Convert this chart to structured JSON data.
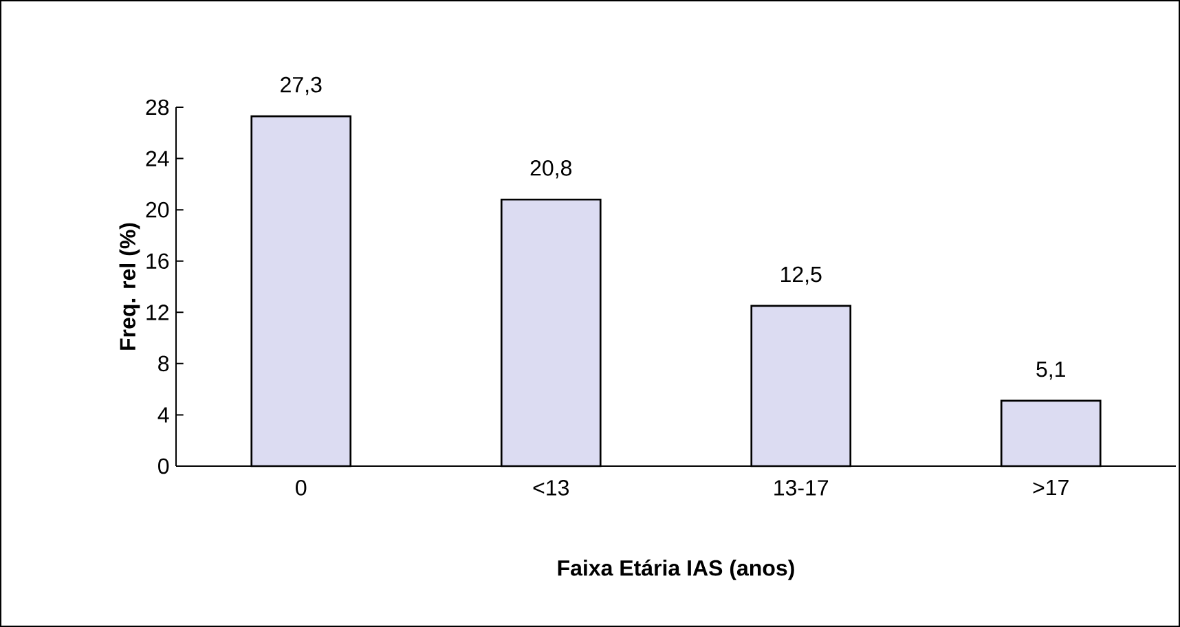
{
  "chart_data": {
    "type": "bar",
    "xlabel": "Faixa Etária IAS (anos)",
    "ylabel": "Freq. rel (%)",
    "categories": [
      "0",
      "<13",
      "13-17",
      ">17"
    ],
    "values": [
      27.3,
      20.8,
      12.5,
      5.1
    ],
    "value_labels": [
      "27,3",
      "20,8",
      "12,5",
      "5,1"
    ],
    "color": "#dcdcf2",
    "ylim": [
      0,
      28
    ],
    "yticks": [
      0,
      4,
      8,
      12,
      16,
      20,
      24,
      28
    ],
    "grid": false
  }
}
